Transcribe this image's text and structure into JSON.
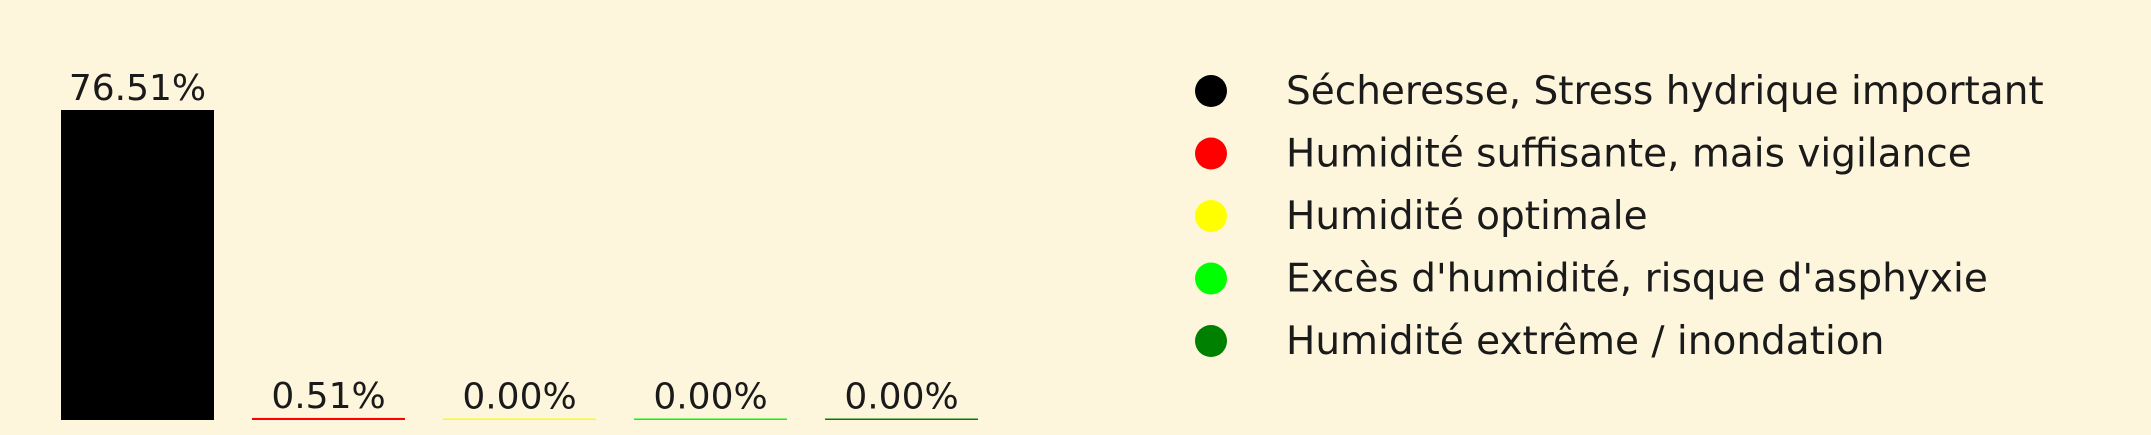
{
  "chart_data": {
    "type": "bar",
    "categories": [
      "Sécheresse, Stress hydrique important",
      "Humidité suffisante, mais vigilance",
      "Humidité optimale",
      "Excès d'humidité, risque d'asphyxie",
      "Humidité extrême / inondation"
    ],
    "values": [
      76.51,
      0.51,
      0.0,
      0.0,
      0.0
    ],
    "data_labels": [
      "76.51%",
      "0.51%",
      "0.00%",
      "0.00%",
      "0.00%"
    ],
    "colors": [
      "#000000",
      "#ff0000",
      "#ffff00",
      "#00ff00",
      "#008000"
    ],
    "ylim": [
      0,
      76.51
    ],
    "grid": false,
    "legend": {
      "placement": "right",
      "entries": [
        "Sécheresse, Stress hydrique important",
        "Humidité suffisante, mais vigilance",
        "Humidité optimale",
        "Excès d'humidité, risque d'asphyxie",
        "Humidité extrême / inondation"
      ]
    }
  }
}
